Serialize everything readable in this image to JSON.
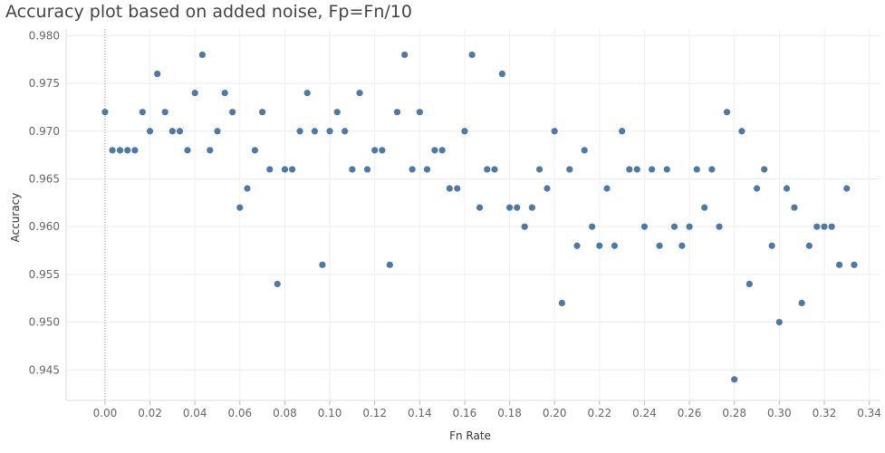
{
  "chart_data": {
    "type": "scatter",
    "title": "Accuracy plot based on added noise, Fp=Fn/10",
    "xlabel": "Fn Rate",
    "ylabel": "Accuracy",
    "xlim": [
      -0.0173,
      0.345
    ],
    "ylim": [
      0.9418,
      0.9807
    ],
    "x_ticks": [
      "0.00",
      "0.02",
      "0.04",
      "0.06",
      "0.08",
      "0.10",
      "0.12",
      "0.14",
      "0.16",
      "0.18",
      "0.20",
      "0.22",
      "0.24",
      "0.26",
      "0.28",
      "0.30",
      "0.32",
      "0.34"
    ],
    "y_ticks": [
      "0.945",
      "0.950",
      "0.955",
      "0.960",
      "0.965",
      "0.970",
      "0.975",
      "0.980"
    ],
    "grid": true,
    "point_color": "#4e79a7",
    "series": [
      {
        "x": [
          0.0,
          0.0033,
          0.0067,
          0.01,
          0.0133,
          0.0167,
          0.02,
          0.0233,
          0.0267,
          0.03,
          0.0333,
          0.0367,
          0.04,
          0.0433,
          0.0467,
          0.05,
          0.0533,
          0.0567,
          0.06,
          0.0633,
          0.0667,
          0.07,
          0.0733,
          0.0767,
          0.08,
          0.0833,
          0.0867,
          0.09,
          0.0933,
          0.0967,
          0.1,
          0.1033,
          0.1067,
          0.11,
          0.1133,
          0.1167,
          0.12,
          0.1233,
          0.1267,
          0.13,
          0.1333,
          0.1367,
          0.14,
          0.1433,
          0.1467,
          0.15,
          0.1533,
          0.1567,
          0.16,
          0.1633,
          0.1667,
          0.17,
          0.1733,
          0.1767,
          0.18,
          0.1833,
          0.1867,
          0.19,
          0.1933,
          0.1967,
          0.2,
          0.2033,
          0.2067,
          0.21,
          0.2133,
          0.2167,
          0.22,
          0.2233,
          0.2267,
          0.23,
          0.2333,
          0.2367,
          0.24,
          0.2433,
          0.2467,
          0.25,
          0.2533,
          0.2567,
          0.26,
          0.2633,
          0.2667,
          0.27,
          0.2733,
          0.2767,
          0.28,
          0.2833,
          0.2867,
          0.29,
          0.2933,
          0.2967,
          0.3,
          0.3033,
          0.3067,
          0.31,
          0.3133,
          0.3167,
          0.32,
          0.3233,
          0.3267,
          0.33,
          0.3333
        ],
        "y": [
          0.972,
          0.968,
          0.968,
          0.968,
          0.968,
          0.972,
          0.97,
          0.976,
          0.972,
          0.97,
          0.97,
          0.968,
          0.974,
          0.978,
          0.968,
          0.97,
          0.974,
          0.972,
          0.962,
          0.964,
          0.968,
          0.972,
          0.966,
          0.954,
          0.966,
          0.966,
          0.97,
          0.974,
          0.97,
          0.956,
          0.97,
          0.972,
          0.97,
          0.966,
          0.974,
          0.966,
          0.968,
          0.968,
          0.956,
          0.972,
          0.978,
          0.966,
          0.972,
          0.966,
          0.968,
          0.968,
          0.964,
          0.964,
          0.97,
          0.978,
          0.962,
          0.966,
          0.966,
          0.976,
          0.962,
          0.962,
          0.96,
          0.962,
          0.966,
          0.964,
          0.97,
          0.952,
          0.966,
          0.958,
          0.968,
          0.96,
          0.958,
          0.964,
          0.958,
          0.97,
          0.966,
          0.966,
          0.96,
          0.966,
          0.958,
          0.966,
          0.96,
          0.958,
          0.96,
          0.966,
          0.962,
          0.966,
          0.96,
          0.972,
          0.944,
          0.97,
          0.954,
          0.964,
          0.966,
          0.958,
          0.95,
          0.964,
          0.962,
          0.952,
          0.958,
          0.96,
          0.96,
          0.96,
          0.956,
          0.964,
          0.956
        ]
      }
    ]
  }
}
